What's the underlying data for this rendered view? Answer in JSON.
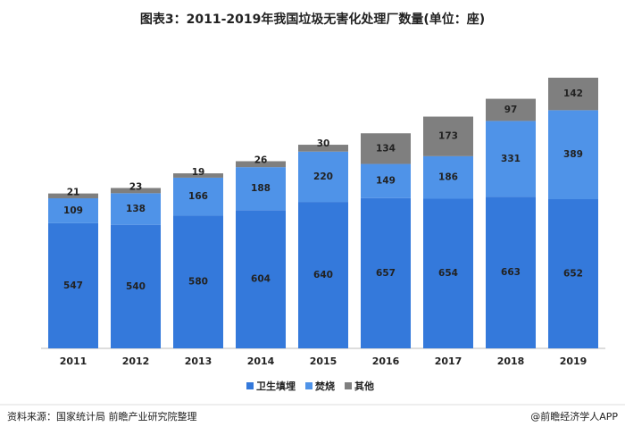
{
  "chart_data": {
    "type": "bar",
    "stacked": true,
    "title": "图表3：2011-2019年我国垃圾无害化处理厂数量(单位：座)",
    "categories": [
      "2011",
      "2012",
      "2013",
      "2014",
      "2015",
      "2016",
      "2017",
      "2018",
      "2019"
    ],
    "series": [
      {
        "name": "卫生填埋",
        "color": "#3479db",
        "values": [
          547,
          540,
          580,
          604,
          640,
          657,
          654,
          663,
          652
        ]
      },
      {
        "name": "焚烧",
        "color": "#4f93e8",
        "values": [
          109,
          138,
          166,
          188,
          220,
          149,
          186,
          331,
          389
        ]
      },
      {
        "name": "其他",
        "color": "#7f7f7f",
        "values": [
          21,
          23,
          19,
          26,
          30,
          134,
          173,
          97,
          142
        ]
      }
    ],
    "source": "资料来源：国家统计局 前瞻产业研究院整理",
    "credit": "@前瞻经济学人APP"
  }
}
